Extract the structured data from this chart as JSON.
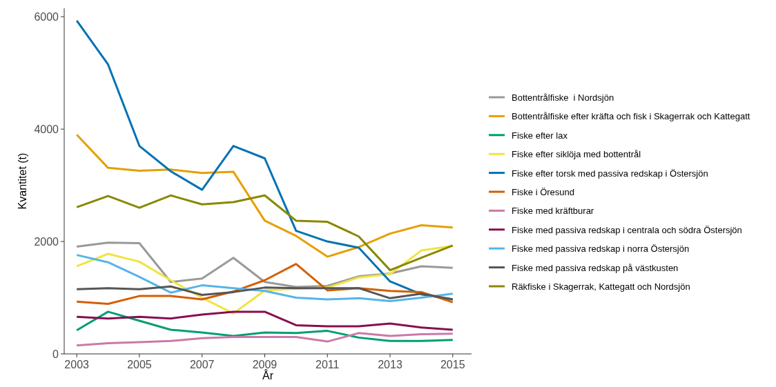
{
  "chart_data": {
    "type": "line",
    "xlabel": "År",
    "ylabel": "Kvantitet (t)",
    "x": [
      2003,
      2004,
      2005,
      2006,
      2007,
      2008,
      2009,
      2010,
      2011,
      2012,
      2013,
      2014,
      2015
    ],
    "xlim": [
      2002.6,
      2015.6
    ],
    "xticks": [
      2003,
      2005,
      2007,
      2009,
      2011,
      2013,
      2015
    ],
    "ylim": [
      0,
      6150
    ],
    "yticks": [
      0,
      2000,
      4000,
      6000
    ],
    "grid": false,
    "legend": "right",
    "line_style": "solid",
    "marker": "none",
    "series": [
      {
        "name": "Bottentrålfiske  i Nordsjön",
        "color": "#999999",
        "values": [
          1910,
          1980,
          1970,
          1280,
          1340,
          1710,
          1280,
          1190,
          1210,
          1380,
          1430,
          1560,
          1530
        ]
      },
      {
        "name": "Bottentrålfiske efter kräfta och fisk i Skagerrak och Kattegatt",
        "color": "#e69f00",
        "values": [
          3900,
          3310,
          3260,
          3280,
          3220,
          3240,
          2370,
          2100,
          1730,
          1900,
          2140,
          2290,
          2250
        ]
      },
      {
        "name": "Fiske efter lax",
        "color": "#009e73",
        "values": [
          420,
          750,
          590,
          430,
          380,
          320,
          380,
          370,
          410,
          290,
          230,
          230,
          250
        ]
      },
      {
        "name": "Fiske efter siklöja med bottentrål",
        "color": "#f0e442",
        "values": [
          1560,
          1780,
          1640,
          1310,
          1000,
          720,
          1130,
          1160,
          1180,
          1360,
          1420,
          1840,
          1920
        ]
      },
      {
        "name": "Fiske efter torsk med passiva redskap i Östersjön",
        "color": "#0072b2",
        "values": [
          5930,
          5150,
          3700,
          3250,
          2920,
          3700,
          3480,
          2190,
          2000,
          1890,
          1290,
          1060,
          970
        ]
      },
      {
        "name": "Fiske i Öresund",
        "color": "#d55e00",
        "values": [
          930,
          890,
          1030,
          1030,
          970,
          1110,
          1310,
          1600,
          1130,
          1170,
          1120,
          1100,
          920
        ]
      },
      {
        "name": "Fiske med kräftburar",
        "color": "#cc79a7",
        "values": [
          150,
          190,
          210,
          230,
          280,
          300,
          300,
          300,
          220,
          370,
          320,
          350,
          360
        ]
      },
      {
        "name": "Fiske med passiva redskap i centrala och södra Östersjön",
        "color": "#880e4f",
        "values": [
          660,
          630,
          660,
          630,
          700,
          750,
          750,
          510,
          490,
          490,
          540,
          470,
          430
        ]
      },
      {
        "name": "Fiske med passiva redskap i norra Östersjön",
        "color": "#56b4e9",
        "values": [
          1760,
          1630,
          1370,
          1090,
          1220,
          1170,
          1120,
          1000,
          970,
          990,
          940,
          1000,
          1070
        ]
      },
      {
        "name": "Fiske med passiva redskap på västkusten",
        "color": "#555555",
        "values": [
          1150,
          1170,
          1150,
          1200,
          1050,
          1100,
          1180,
          1170,
          1170,
          1170,
          990,
          1070,
          970
        ]
      },
      {
        "name": "Räkfiske i Skagerrak, Kattegatt och Nordsjön",
        "color": "#888800",
        "values": [
          2610,
          2810,
          2600,
          2820,
          2660,
          2700,
          2820,
          2370,
          2350,
          2090,
          1490,
          1710,
          1930
        ]
      }
    ]
  }
}
